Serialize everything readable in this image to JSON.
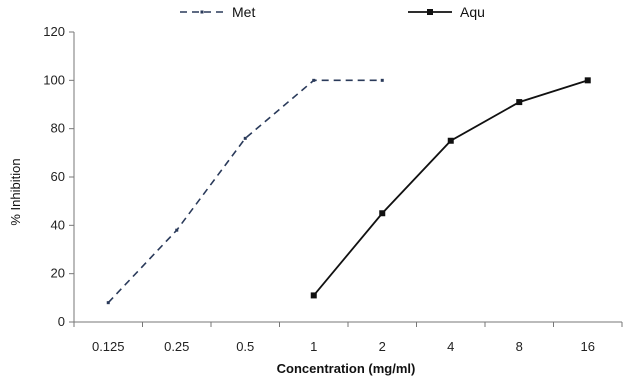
{
  "chart_data": {
    "type": "line",
    "categories": [
      "0.125",
      "0.25",
      "0.5",
      "1",
      "2",
      "4",
      "8",
      "16"
    ],
    "series": [
      {
        "name": "Met",
        "style": "dashed",
        "color": "#2a3a5a",
        "values": [
          8,
          38,
          76,
          100,
          100,
          null,
          null,
          null
        ]
      },
      {
        "name": "Aqu",
        "style": "solid",
        "color": "#111111",
        "values": [
          null,
          null,
          null,
          11,
          45,
          75,
          91,
          100
        ]
      }
    ],
    "xlabel": "Concentration (mg/ml)",
    "ylabel": "% Inhibition",
    "ylim": [
      0,
      120
    ],
    "yticks": [
      "0",
      "20",
      "40",
      "60",
      "80",
      "100",
      "120"
    ],
    "grid": false,
    "legend_position": "top"
  }
}
